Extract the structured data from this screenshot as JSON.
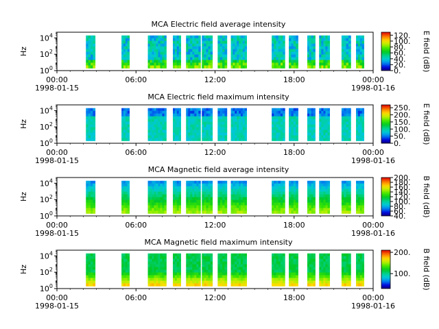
{
  "chart_data": [
    {
      "type": "heatmap",
      "title": "MCA  Electric field average intensity",
      "ylabel": "Hz",
      "y_scale": "log",
      "ylim": [
        1,
        50000
      ],
      "y_ticks": [
        {
          "base": "10",
          "exp": "0"
        },
        {
          "base": "10",
          "exp": "2"
        },
        {
          "base": "10",
          "exp": "4"
        }
      ],
      "x_ticks": [
        "00:00",
        "06:00",
        "12:00",
        "18:00",
        "00:00"
      ],
      "x_dates": [
        "1998-01-15",
        "1998-01-16"
      ],
      "colorbar": {
        "label": "E field (dB)",
        "min": 0,
        "max": 130,
        "ticks": [
          "0.",
          "20.",
          "40.",
          "60.",
          "80.",
          "100.",
          "120."
        ],
        "tick_values": [
          0,
          20,
          40,
          60,
          80,
          100,
          120
        ]
      },
      "palette": "spectral",
      "data_intervals_hours": [
        [
          2.2,
          2.9
        ],
        [
          4.9,
          5.5
        ],
        [
          6.9,
          8.3
        ],
        [
          8.8,
          9.4
        ],
        [
          9.8,
          10.9
        ],
        [
          11.0,
          11.8
        ],
        [
          12.2,
          12.9
        ],
        [
          13.2,
          14.4
        ],
        [
          16.3,
          17.3
        ],
        [
          17.6,
          18.3
        ],
        [
          19.0,
          19.6
        ],
        [
          19.9,
          20.7
        ],
        [
          21.6,
          22.3
        ],
        [
          22.7,
          23.3
        ]
      ],
      "dominant_level_db": 40
    },
    {
      "type": "heatmap",
      "title": "MCA  Electric field maximum intensity",
      "ylabel": "Hz",
      "y_scale": "log",
      "ylim": [
        1,
        50000
      ],
      "y_ticks": [
        {
          "base": "10",
          "exp": "0"
        },
        {
          "base": "10",
          "exp": "2"
        },
        {
          "base": "10",
          "exp": "4"
        }
      ],
      "x_ticks": [
        "00:00",
        "06:00",
        "12:00",
        "18:00",
        "00:00"
      ],
      "x_dates": [
        "1998-01-15",
        "1998-01-16"
      ],
      "colorbar": {
        "label": "E field (dB)",
        "min": 0,
        "max": 270,
        "ticks": [
          "0.",
          "50.",
          "100.",
          "150.",
          "200.",
          "250."
        ],
        "tick_values": [
          0,
          50,
          100,
          150,
          200,
          250
        ]
      },
      "palette": "spectral",
      "data_intervals_hours": [
        [
          2.2,
          2.9
        ],
        [
          4.9,
          5.5
        ],
        [
          6.9,
          8.3
        ],
        [
          8.8,
          9.4
        ],
        [
          9.8,
          10.9
        ],
        [
          11.0,
          11.8
        ],
        [
          12.2,
          12.9
        ],
        [
          13.2,
          14.4
        ],
        [
          16.3,
          17.3
        ],
        [
          17.6,
          18.3
        ],
        [
          19.0,
          19.6
        ],
        [
          19.9,
          20.7
        ],
        [
          21.6,
          22.3
        ],
        [
          22.7,
          23.3
        ]
      ],
      "dominant_level_db": 90
    },
    {
      "type": "heatmap",
      "title": "MCA  Magnetic field average intensity",
      "ylabel": "Hz",
      "y_scale": "log",
      "ylim": [
        1,
        50000
      ],
      "y_ticks": [
        {
          "base": "10",
          "exp": "0"
        },
        {
          "base": "10",
          "exp": "2"
        },
        {
          "base": "10",
          "exp": "4"
        }
      ],
      "x_ticks": [
        "00:00",
        "06:00",
        "12:00",
        "18:00",
        "00:00"
      ],
      "x_dates": [
        "1998-01-15",
        "1998-01-16"
      ],
      "colorbar": {
        "label": "B field (dB)",
        "min": 40,
        "max": 200,
        "ticks": [
          "40.",
          "60.",
          "80.",
          "100.",
          "120.",
          "140.",
          "160.",
          "180.",
          "200."
        ],
        "tick_values": [
          40,
          60,
          80,
          100,
          120,
          140,
          160,
          180,
          200
        ]
      },
      "palette": "spectral",
      "data_intervals_hours": [
        [
          2.2,
          2.9
        ],
        [
          4.9,
          5.5
        ],
        [
          6.9,
          8.3
        ],
        [
          8.8,
          9.4
        ],
        [
          9.8,
          10.9
        ],
        [
          11.0,
          11.8
        ],
        [
          12.2,
          12.9
        ],
        [
          13.2,
          14.4
        ],
        [
          16.3,
          17.3
        ],
        [
          17.6,
          18.3
        ],
        [
          19.0,
          19.6
        ],
        [
          19.9,
          20.7
        ],
        [
          21.6,
          22.3
        ],
        [
          22.7,
          23.3
        ]
      ],
      "dominant_level_db": 110
    },
    {
      "type": "heatmap",
      "title": "MCA  Magnetic field maximum intensity",
      "ylabel": "Hz",
      "y_scale": "log",
      "ylim": [
        1,
        50000
      ],
      "y_ticks": [
        {
          "base": "10",
          "exp": "0"
        },
        {
          "base": "10",
          "exp": "2"
        },
        {
          "base": "10",
          "exp": "4"
        }
      ],
      "x_ticks": [
        "00:00",
        "06:00",
        "12:00",
        "18:00",
        "00:00"
      ],
      "x_dates": [
        "1998-01-15",
        "1998-01-16"
      ],
      "colorbar": {
        "label": "B field (dB)",
        "min": 30,
        "max": 210,
        "ticks": [
          "100.",
          "200."
        ],
        "tick_values": [
          100,
          200
        ]
      },
      "palette": "spectral",
      "data_intervals_hours": [
        [
          2.2,
          2.9
        ],
        [
          4.9,
          5.5
        ],
        [
          6.9,
          8.3
        ],
        [
          8.8,
          9.4
        ],
        [
          9.8,
          10.9
        ],
        [
          11.0,
          11.8
        ],
        [
          12.2,
          12.9
        ],
        [
          13.2,
          14.4
        ],
        [
          16.3,
          17.3
        ],
        [
          17.6,
          18.3
        ],
        [
          19.0,
          19.6
        ],
        [
          19.9,
          20.7
        ],
        [
          21.6,
          22.3
        ],
        [
          22.7,
          23.3
        ]
      ],
      "dominant_level_db": 120
    }
  ]
}
